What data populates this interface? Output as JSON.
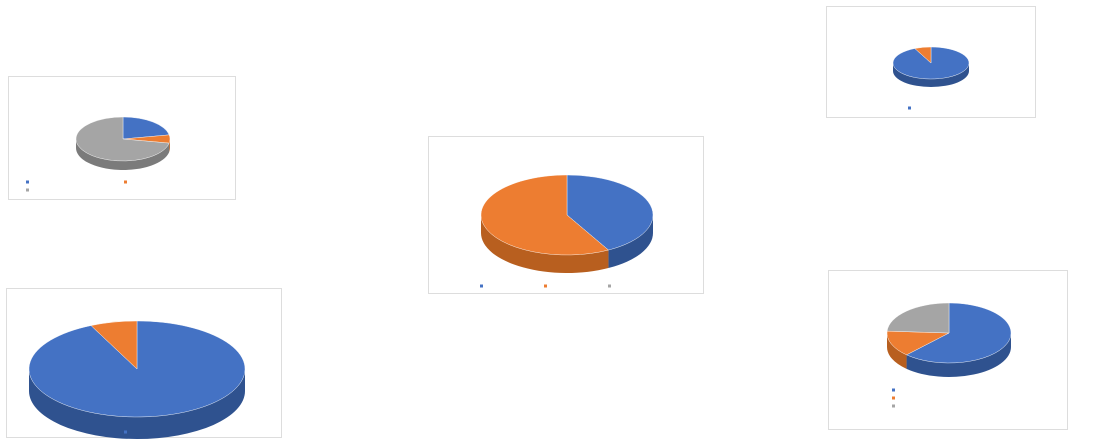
{
  "col1": {
    "top_label": "",
    "top_value": "",
    "q2_text": "",
    "q2_rows": [
      {
        "label": "",
        "value": ""
      },
      {
        "label": "",
        "value": ""
      }
    ]
  },
  "col2": {
    "q1_text": "",
    "q1_sub": "",
    "q1_link": "",
    "q1_rows": [
      {
        "label": "",
        "value": ""
      },
      {
        "label": "",
        "value": ""
      },
      {
        "label": "",
        "value": ""
      }
    ],
    "q2_text": "",
    "q2_sub": "",
    "q2_link": "",
    "q2_rows": [
      {
        "label": "",
        "value": ""
      },
      {
        "label": "",
        "value": ""
      }
    ]
  },
  "col3": {
    "q1_text": "",
    "q1_sub": "",
    "q1_link": "",
    "q1_rows": [
      {
        "label": "",
        "value": ""
      },
      {
        "label": "",
        "value": ""
      },
      {
        "label": "",
        "value": ""
      }
    ]
  },
  "colors": {
    "blue": "#4472c4",
    "orange": "#ed7d31",
    "gray": "#a5a5a5",
    "blue_dark": "#2f528f",
    "orange_dark": "#b85f1f",
    "gray_dark": "#7b7b7b"
  },
  "chart_data": [
    {
      "id": "chart-a",
      "type": "pie",
      "title": "",
      "slices": [
        {
          "name": "",
          "value": 22,
          "color": "blue"
        },
        {
          "name": "",
          "value": 6,
          "color": "orange"
        },
        {
          "name": "",
          "value": 72,
          "color": "gray"
        }
      ],
      "legend": [
        "",
        "",
        ""
      ]
    },
    {
      "id": "chart-b",
      "type": "pie",
      "title": "",
      "slices": [
        {
          "name": "",
          "value": 93,
          "color": "blue"
        },
        {
          "name": "",
          "value": 7,
          "color": "orange"
        }
      ],
      "legend": [
        ""
      ]
    },
    {
      "id": "chart-c",
      "type": "pie",
      "title": "",
      "slices": [
        {
          "name": "",
          "value": 42,
          "color": "blue"
        },
        {
          "name": "",
          "value": 58,
          "color": "orange"
        },
        {
          "name": "",
          "value": 0,
          "color": "gray"
        }
      ],
      "legend": [
        "",
        "",
        ""
      ]
    },
    {
      "id": "chart-d",
      "type": "pie",
      "title": "",
      "slices": [
        {
          "name": "",
          "value": 93,
          "color": "blue"
        },
        {
          "name": "",
          "value": 7,
          "color": "orange"
        }
      ],
      "legend": [
        ""
      ]
    },
    {
      "id": "chart-e",
      "type": "pie",
      "title": "",
      "slices": [
        {
          "name": "",
          "value": 62,
          "color": "blue"
        },
        {
          "name": "",
          "value": 14,
          "color": "orange"
        },
        {
          "name": "",
          "value": 24,
          "color": "gray"
        }
      ],
      "legend": [
        "",
        "",
        ""
      ]
    }
  ]
}
